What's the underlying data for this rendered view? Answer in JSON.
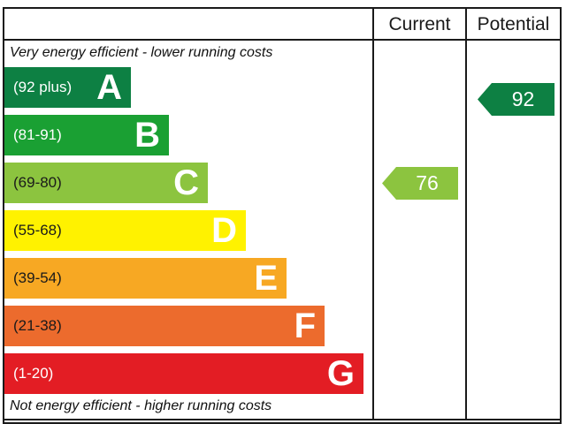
{
  "header": {
    "current_label": "Current",
    "potential_label": "Potential"
  },
  "captions": {
    "top": "Very energy efficient - lower running costs",
    "bottom": "Not energy efficient - higher running costs"
  },
  "chart_data": {
    "type": "bar",
    "bands": [
      {
        "letter": "A",
        "range": "(92 plus)",
        "color": "#0d8043",
        "text_color": "#ffffff"
      },
      {
        "letter": "B",
        "range": "(81-91)",
        "color": "#1aa033",
        "text_color": "#ffffff"
      },
      {
        "letter": "C",
        "range": "(69-80)",
        "color": "#8cc43f",
        "text_color": "#1a1a1a"
      },
      {
        "letter": "D",
        "range": "(55-68)",
        "color": "#fff200",
        "text_color": "#1a1a1a"
      },
      {
        "letter": "E",
        "range": "(39-54)",
        "color": "#f7a823",
        "text_color": "#1a1a1a"
      },
      {
        "letter": "F",
        "range": "(21-38)",
        "color": "#ec6b2d",
        "text_color": "#1a1a1a"
      },
      {
        "letter": "G",
        "range": "(1-20)",
        "color": "#e31d24",
        "text_color": "#ffffff"
      }
    ],
    "current": {
      "value": 76,
      "band": "C",
      "color": "#8cc43f"
    },
    "potential": {
      "value": 92,
      "band": "A",
      "color": "#0d8043"
    }
  }
}
